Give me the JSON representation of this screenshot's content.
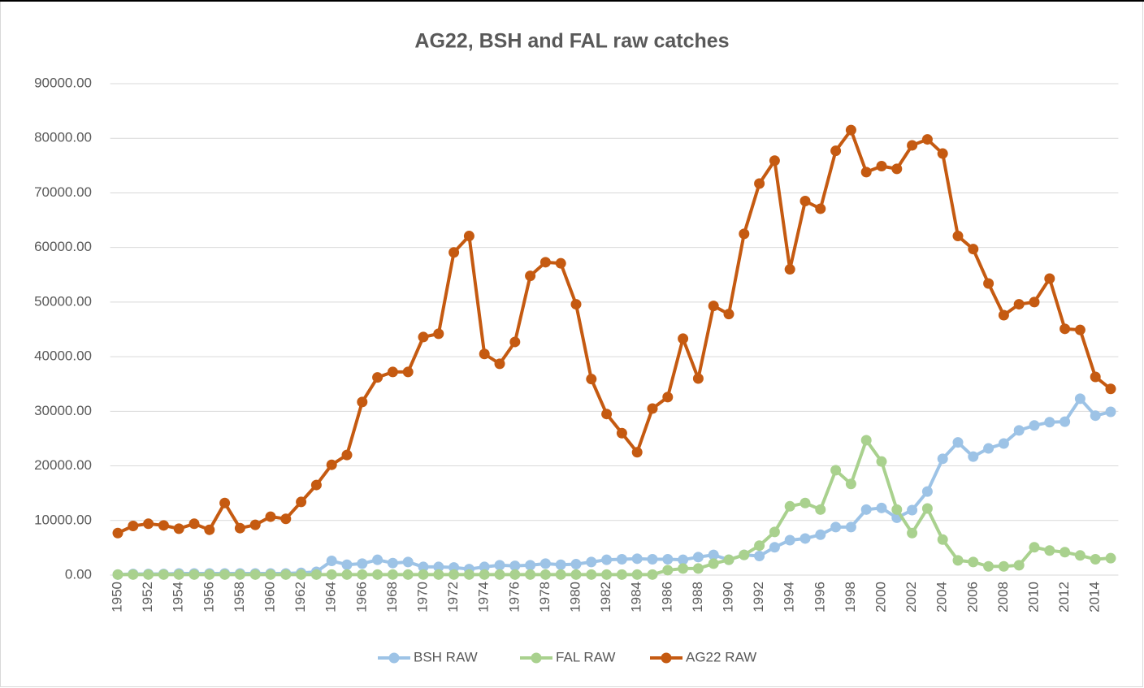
{
  "chart_data": {
    "type": "line",
    "title": "AG22, BSH and FAL raw catches",
    "categories": [
      "1950",
      null,
      "1952",
      null,
      "1954",
      null,
      "1956",
      null,
      "1958",
      null,
      "1960",
      null,
      "1962",
      null,
      "1964",
      null,
      "1966",
      null,
      "1968",
      null,
      "1970",
      null,
      "1972",
      null,
      "1974",
      null,
      "1976",
      null,
      "1978",
      null,
      "1980",
      null,
      "1982",
      null,
      "1984",
      null,
      "1986",
      null,
      "1988",
      null,
      "1990",
      null,
      "1992",
      null,
      "1994",
      null,
      "1996",
      null,
      "1998",
      null,
      "2000",
      null,
      "2002",
      null,
      "2004",
      null,
      "2006",
      null,
      "2008",
      null,
      "2010",
      null,
      "2012",
      null,
      "2014",
      null
    ],
    "series": [
      {
        "name": "BSH RAW",
        "color": "#9dc3e6",
        "values": [
          100,
          200,
          200,
          200,
          300,
          300,
          300,
          300,
          300,
          300,
          300,
          300,
          400,
          600,
          2600,
          1900,
          2100,
          2800,
          2200,
          2400,
          1500,
          1500,
          1400,
          1100,
          1500,
          1800,
          1700,
          1800,
          2100,
          1900,
          2000,
          2400,
          2800,
          2900,
          3000,
          2900,
          2900,
          2800,
          3300,
          3700,
          2800,
          3700,
          3500,
          5100,
          6400,
          6700,
          7400,
          8800,
          8800,
          12000,
          12300,
          10500,
          11900,
          15300,
          21300,
          24300,
          21700,
          23200,
          24100,
          26500,
          27400,
          28000,
          28100,
          32300,
          29200,
          29900
        ]
      },
      {
        "name": "FAL RAW",
        "color": "#a9d18e",
        "values": [
          100,
          100,
          100,
          100,
          100,
          100,
          100,
          100,
          100,
          100,
          100,
          100,
          100,
          100,
          100,
          100,
          100,
          100,
          100,
          100,
          100,
          100,
          100,
          100,
          100,
          100,
          100,
          100,
          100,
          100,
          100,
          100,
          100,
          100,
          100,
          100,
          900,
          1200,
          1200,
          2100,
          2800,
          3700,
          5400,
          7900,
          12600,
          13200,
          12000,
          19200,
          16700,
          24700,
          20800,
          12000,
          7700,
          12200,
          6500,
          2700,
          2400,
          1600,
          1600,
          1800,
          5100,
          4500,
          4200,
          3600,
          2900,
          3100
        ]
      },
      {
        "name": "AG22 RAW",
        "color": "#c55a11",
        "values": [
          7700,
          9000,
          9400,
          9100,
          8500,
          9400,
          8300,
          13200,
          8600,
          9200,
          10700,
          10300,
          13400,
          16500,
          20200,
          22000,
          31700,
          36200,
          37200,
          37200,
          43600,
          44200,
          59100,
          62100,
          40500,
          38700,
          42700,
          54800,
          57300,
          57100,
          49600,
          35900,
          29500,
          26000,
          22500,
          30500,
          32600,
          43300,
          36000,
          49300,
          47800,
          62500,
          71700,
          75900,
          56000,
          68500,
          67100,
          77700,
          81500,
          73800,
          74900,
          74400,
          78700,
          79800,
          77200,
          62100,
          59700,
          53400,
          47600,
          49600,
          50000,
          54300,
          45100,
          44900,
          36300,
          34100
        ]
      }
    ],
    "ylim": [
      0,
      90000
    ],
    "yticks": [
      {
        "value": 0,
        "label": "0.00"
      },
      {
        "value": 10000,
        "label": "10000.00"
      },
      {
        "value": 20000,
        "label": "20000.00"
      },
      {
        "value": 30000,
        "label": "30000.00"
      },
      {
        "value": 40000,
        "label": "40000.00"
      },
      {
        "value": 50000,
        "label": "50000.00"
      },
      {
        "value": 60000,
        "label": "60000.00"
      },
      {
        "value": 70000,
        "label": "70000.00"
      },
      {
        "value": 80000,
        "label": "80000.00"
      },
      {
        "value": 90000,
        "label": "90000.00"
      }
    ],
    "grid": true,
    "legend": "bottom"
  }
}
